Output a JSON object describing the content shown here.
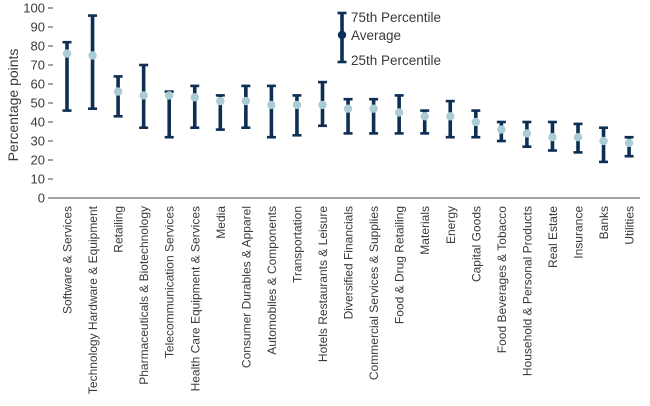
{
  "chart_data": {
    "type": "error-range",
    "ylabel": "Percentage points",
    "ylim": [
      0,
      100
    ],
    "yticks": [
      "0",
      "10",
      "20",
      "30",
      "40",
      "50",
      "60",
      "70",
      "80",
      "90",
      "100"
    ],
    "legend": {
      "top": "75th Percentile",
      "middle": "Average",
      "bottom": "25th Percentile",
      "placement": "top-right"
    },
    "colors": {
      "range": "#0d2f55",
      "average": "#a9cdd2",
      "axis": "#444444"
    },
    "categories": [
      "Software & Services",
      "Technology Hardware & Equipment",
      "Retailing",
      "Pharmaceuticals & Biotechnology",
      "Telecommunication Services",
      "Health Care Equipment & Services",
      "Media",
      "Consumer Durables & Apparel",
      "Automobiles & Components",
      "Transportation",
      "Hotels Restaurants & Leisure",
      "Diversified Financials",
      "Commercial Services & Supplies",
      "Food & Drug Retailing",
      "Materials",
      "Energy",
      "Capital Goods",
      "Food Beverages & Tobacco",
      "Household & Personal Products",
      "Real Estate",
      "Insurance",
      "Banks",
      "Utilities"
    ],
    "series": [
      {
        "name": "75th Percentile",
        "values": [
          82,
          96,
          64,
          70,
          56,
          59,
          54,
          59,
          59,
          54,
          61,
          52,
          52,
          54,
          46,
          51,
          46,
          40,
          40,
          40,
          39,
          37,
          32
        ]
      },
      {
        "name": "Average",
        "values": [
          76,
          75,
          56,
          54,
          54,
          53,
          51,
          51,
          49,
          49,
          49,
          47,
          47,
          45,
          43,
          43,
          40,
          36,
          34,
          32,
          32,
          30,
          29
        ]
      },
      {
        "name": "25th Percentile",
        "values": [
          46,
          47,
          43,
          37,
          32,
          37,
          36,
          37,
          32,
          33,
          38,
          34,
          34,
          34,
          34,
          32,
          32,
          30,
          27,
          25,
          24,
          19,
          22
        ]
      }
    ]
  }
}
